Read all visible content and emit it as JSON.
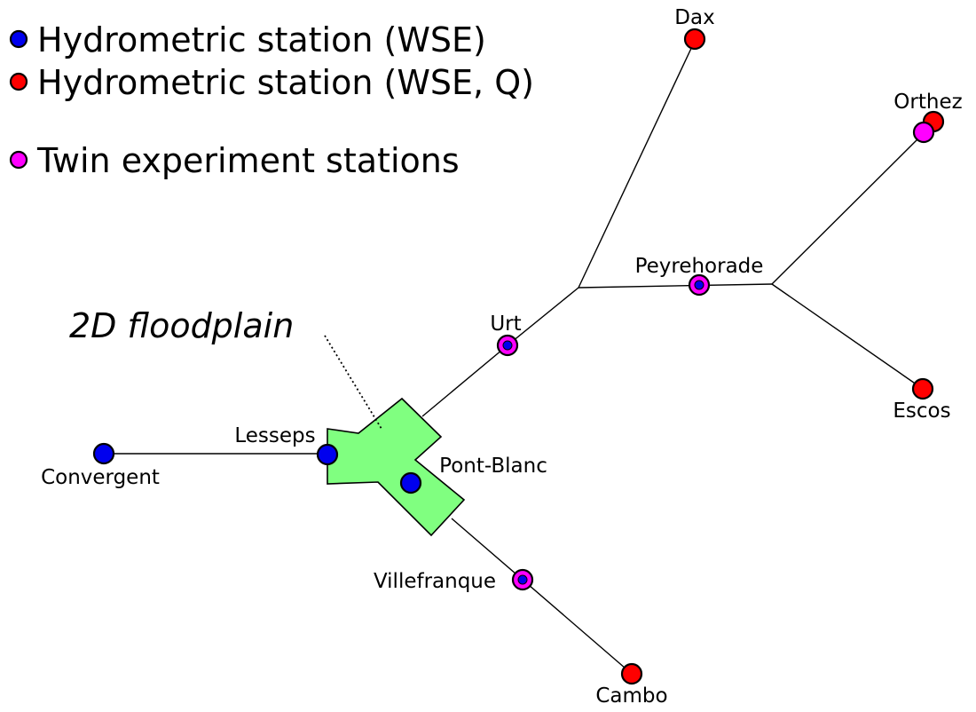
{
  "colors": {
    "wse": "#0000ee",
    "wse_q": "#ff0000",
    "twin": "#ff00ff",
    "floodplain": "#80ff80"
  },
  "legend": {
    "wse": "Hydrometric station (WSE)",
    "wse_q": "Hydrometric station (WSE, Q)",
    "twin": "Twin experiment stations"
  },
  "floodplain_label": "2D floodplain",
  "stations": {
    "dax": "Dax",
    "orthez": "Orthez",
    "peyrehorade": "Peyrehorade",
    "urt": "Urt",
    "escos": "Escos",
    "lesseps": "Lesseps",
    "convergent": "Convergent",
    "pont_blanc": "Pont-Blanc",
    "villefranque": "Villefranque",
    "cambo": "Cambo"
  }
}
